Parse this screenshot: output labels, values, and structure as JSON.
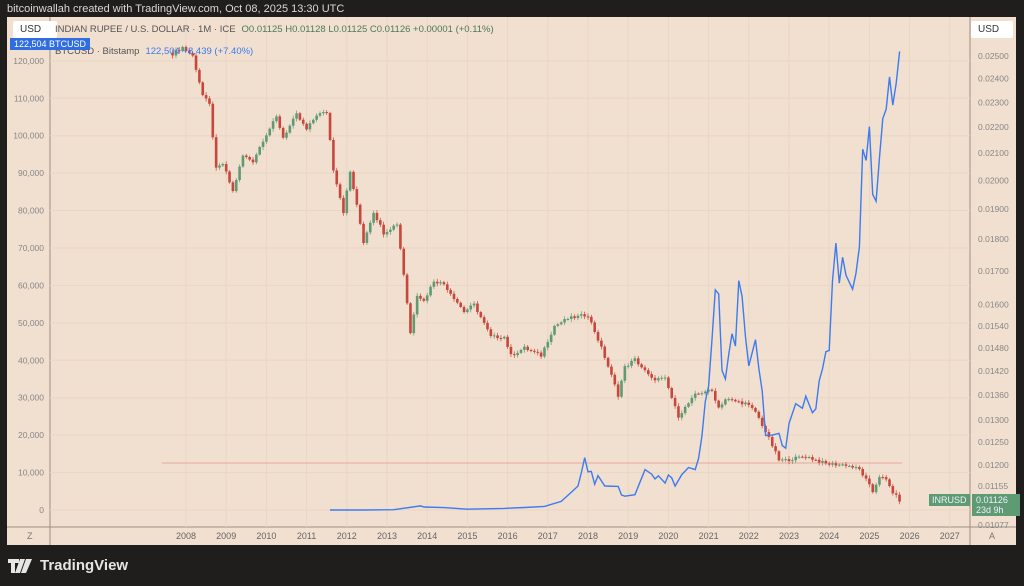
{
  "credit": "bitcoinwallah created with TradingView.com, Oct 08, 2025 13:30 UTC",
  "legend": {
    "main": "INDIAN RUPEE / U.S. DOLLAR · 1M · ICE",
    "ohlc": "O0.01125  H0.01128  L0.01125  C0.01126  +0.00001 (+0.11%)",
    "btc_name": "BTCUSD · Bitstamp",
    "btc_value": "122,504  +8,439 (+7.40%)"
  },
  "left_currency": "USD",
  "right_currency": "USD",
  "btc_tag": "122,504   BTCUSD",
  "inr_tag": "INRUSD",
  "inr_price": "0.01126",
  "inr_countdown": "23d 9h",
  "z_button": "Z",
  "a_button": "A",
  "logo": "TradingView",
  "colors": {
    "up": "#5f9b72",
    "down": "#c8473d",
    "btc": "#3c7bf0",
    "background": "#f1dfcf"
  },
  "chart_data": {
    "type": "candlestick+line",
    "x_ticks": [
      "2008",
      "2009",
      "2010",
      "2011",
      "2012",
      "2013",
      "2014",
      "2015",
      "2016",
      "2017",
      "2018",
      "2019",
      "2020",
      "2021",
      "2022",
      "2023",
      "2024",
      "2025",
      "2026",
      "2027"
    ],
    "left_axis": {
      "label": "USD",
      "ticks": [
        "120,000",
        "110,000",
        "100,000",
        "90,000",
        "80,000",
        "70,000",
        "60,000",
        "50,000",
        "40,000",
        "30,000",
        "20,000",
        "10,000",
        "0"
      ],
      "range": [
        -7000,
        125000
      ]
    },
    "right_axis": {
      "label": "USD",
      "scale": "log",
      "ticks": [
        "0.02500",
        "0.02400",
        "0.02300",
        "0.02200",
        "0.02100",
        "0.02000",
        "0.01900",
        "0.01800",
        "0.01700",
        "0.01600",
        "0.01540",
        "0.01480",
        "0.01420",
        "0.01360",
        "0.01300",
        "0.01250",
        "0.01200",
        "0.01155",
        "0.01077"
      ]
    },
    "series": [
      {
        "name": "INRUSD",
        "axis": "right",
        "type": "candlestick",
        "interval": "1M",
        "closes": [
          [
            "2007-09",
            0.0251
          ],
          [
            "2007-12",
            0.0254
          ],
          [
            "2008-03",
            0.025
          ],
          [
            "2008-06",
            0.0233
          ],
          [
            "2008-08",
            0.0229
          ],
          [
            "2008-10",
            0.0204
          ],
          [
            "2008-12",
            0.0206
          ],
          [
            "2009-03",
            0.0196
          ],
          [
            "2009-06",
            0.0209
          ],
          [
            "2009-09",
            0.0207
          ],
          [
            "2009-12",
            0.0215
          ],
          [
            "2010-04",
            0.0224
          ],
          [
            "2010-06",
            0.0216
          ],
          [
            "2010-10",
            0.0225
          ],
          [
            "2011-01",
            0.0219
          ],
          [
            "2011-04",
            0.0225
          ],
          [
            "2011-07",
            0.0226
          ],
          [
            "2011-09",
            0.0204
          ],
          [
            "2011-12",
            0.0189
          ],
          [
            "2012-02",
            0.0203
          ],
          [
            "2012-06",
            0.0179
          ],
          [
            "2012-09",
            0.0189
          ],
          [
            "2012-12",
            0.0182
          ],
          [
            "2013-04",
            0.0185
          ],
          [
            "2013-06",
            0.0169
          ],
          [
            "2013-08",
            0.0152
          ],
          [
            "2013-10",
            0.0163
          ],
          [
            "2013-12",
            0.0161
          ],
          [
            "2014-03",
            0.0167
          ],
          [
            "2014-06",
            0.0166
          ],
          [
            "2014-12",
            0.0158
          ],
          [
            "2015-03",
            0.016
          ],
          [
            "2015-08",
            0.0151
          ],
          [
            "2015-12",
            0.0151
          ],
          [
            "2016-02",
            0.0146
          ],
          [
            "2016-06",
            0.0148
          ],
          [
            "2016-11",
            0.0146
          ],
          [
            "2017-03",
            0.0154
          ],
          [
            "2017-07",
            0.0156
          ],
          [
            "2017-12",
            0.0157
          ],
          [
            "2018-01",
            0.0157
          ],
          [
            "2018-05",
            0.0148
          ],
          [
            "2018-10",
            0.0136
          ],
          [
            "2018-12",
            0.0143
          ],
          [
            "2019-03",
            0.0145
          ],
          [
            "2019-08",
            0.014
          ],
          [
            "2019-12",
            0.014
          ],
          [
            "2020-03",
            0.0133
          ],
          [
            "2020-04",
            0.0131
          ],
          [
            "2020-09",
            0.0136
          ],
          [
            "2020-12",
            0.0137
          ],
          [
            "2021-02",
            0.0137
          ],
          [
            "2021-04",
            0.0133
          ],
          [
            "2021-06",
            0.0135
          ],
          [
            "2021-12",
            0.0134
          ],
          [
            "2022-03",
            0.0132
          ],
          [
            "2022-07",
            0.01258
          ],
          [
            "2022-10",
            0.0121
          ],
          [
            "2022-12",
            0.0121
          ],
          [
            "2023-06",
            0.01219
          ],
          [
            "2023-12",
            0.01202
          ],
          [
            "2024-06",
            0.012
          ],
          [
            "2024-10",
            0.0119
          ],
          [
            "2024-12",
            0.01168
          ],
          [
            "2025-02",
            0.01143
          ],
          [
            "2025-04",
            0.01176
          ],
          [
            "2025-06",
            0.01167
          ],
          [
            "2025-08",
            0.01142
          ],
          [
            "2025-10",
            0.01126
          ]
        ]
      },
      {
        "name": "BTCUSD",
        "axis": "left",
        "type": "line",
        "points": [
          [
            "2011-08",
            10
          ],
          [
            "2012-06",
            7
          ],
          [
            "2013-03",
            90
          ],
          [
            "2013-11",
            1100
          ],
          [
            "2013-12",
            800
          ],
          [
            "2014-06",
            640
          ],
          [
            "2015-01",
            220
          ],
          [
            "2015-12",
            430
          ],
          [
            "2016-06",
            670
          ],
          [
            "2016-12",
            960
          ],
          [
            "2017-05",
            2300
          ],
          [
            "2017-08",
            4700
          ],
          [
            "2017-10",
            6400
          ],
          [
            "2017-11",
            9900
          ],
          [
            "2017-12",
            14000
          ],
          [
            "2018-01",
            10200
          ],
          [
            "2018-02",
            10300
          ],
          [
            "2018-03",
            6900
          ],
          [
            "2018-04",
            9200
          ],
          [
            "2018-06",
            6400
          ],
          [
            "2018-10",
            6300
          ],
          [
            "2018-11",
            4000
          ],
          [
            "2018-12",
            3700
          ],
          [
            "2019-03",
            4100
          ],
          [
            "2019-05",
            8500
          ],
          [
            "2019-06",
            10800
          ],
          [
            "2019-08",
            9600
          ],
          [
            "2019-09",
            8300
          ],
          [
            "2019-10",
            9150
          ],
          [
            "2019-12",
            7200
          ],
          [
            "2020-01",
            9350
          ],
          [
            "2020-02",
            8600
          ],
          [
            "2020-03",
            6400
          ],
          [
            "2020-05",
            9450
          ],
          [
            "2020-07",
            11350
          ],
          [
            "2020-09",
            10800
          ],
          [
            "2020-10",
            13800
          ],
          [
            "2020-11",
            19700
          ],
          [
            "2020-12",
            29000
          ],
          [
            "2021-01",
            33100
          ],
          [
            "2021-02",
            45200
          ],
          [
            "2021-03",
            58800
          ],
          [
            "2021-04",
            57700
          ],
          [
            "2021-05",
            37300
          ],
          [
            "2021-06",
            35000
          ],
          [
            "2021-07",
            41500
          ],
          [
            "2021-08",
            47100
          ],
          [
            "2021-09",
            43800
          ],
          [
            "2021-10",
            61300
          ],
          [
            "2021-11",
            57000
          ],
          [
            "2021-12",
            46200
          ],
          [
            "2022-01",
            38500
          ],
          [
            "2022-03",
            45500
          ],
          [
            "2022-04",
            37700
          ],
          [
            "2022-05",
            31800
          ],
          [
            "2022-06",
            19900
          ],
          [
            "2022-08",
            20000
          ],
          [
            "2022-10",
            20500
          ],
          [
            "2022-11",
            17200
          ],
          [
            "2022-12",
            16500
          ],
          [
            "2023-01",
            23100
          ],
          [
            "2023-03",
            28400
          ],
          [
            "2023-05",
            27200
          ],
          [
            "2023-06",
            30400
          ],
          [
            "2023-08",
            26000
          ],
          [
            "2023-09",
            27000
          ],
          [
            "2023-10",
            34500
          ],
          [
            "2023-11",
            37700
          ],
          [
            "2023-12",
            42300
          ],
          [
            "2024-01",
            42600
          ],
          [
            "2024-02",
            61200
          ],
          [
            "2024-03",
            71300
          ],
          [
            "2024-04",
            60600
          ],
          [
            "2024-05",
            67500
          ],
          [
            "2024-06",
            62700
          ],
          [
            "2024-08",
            59000
          ],
          [
            "2024-09",
            63300
          ],
          [
            "2024-10",
            70300
          ],
          [
            "2024-11",
            96400
          ],
          [
            "2024-12",
            93400
          ],
          [
            "2025-01",
            102400
          ],
          [
            "2025-02",
            84300
          ],
          [
            "2025-03",
            82500
          ],
          [
            "2025-04",
            94200
          ],
          [
            "2025-05",
            104600
          ],
          [
            "2025-06",
            107100
          ],
          [
            "2025-07",
            115700
          ],
          [
            "2025-08",
            108200
          ],
          [
            "2025-09",
            114000
          ],
          [
            "2025-10",
            122504
          ]
        ]
      }
    ]
  }
}
